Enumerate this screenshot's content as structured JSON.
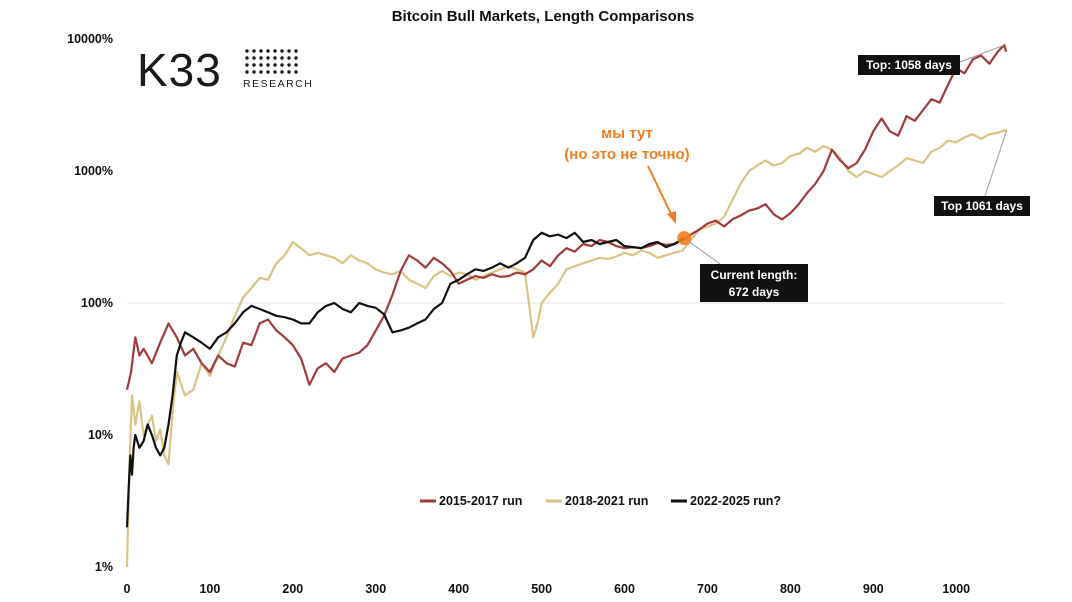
{
  "logo": {
    "word": "K33",
    "sub": "RESEARCH"
  },
  "annotations": {
    "top_2015": "Top: 1058 days",
    "top_2018": "Top 1061 days",
    "current_line1": "Current length:",
    "current_line2": "672 days",
    "note_line1": "мы тут",
    "note_line2": "(но это не точно)"
  },
  "colors": {
    "series_2015": "#a23a3c",
    "series_2018": "#dcc285",
    "series_2022": "#111111",
    "accent": "#f07d1e",
    "grid": "#e6e6e6"
  },
  "chart_data": {
    "type": "line",
    "title": "Bitcoin Bull Markets, Length Comparisons",
    "xlabel": "",
    "ylabel": "",
    "x_ticks": [
      0,
      100,
      200,
      300,
      400,
      500,
      600,
      700,
      800,
      900,
      1000
    ],
    "y_ticks": [
      1,
      10,
      100,
      1000,
      10000
    ],
    "y_tick_labels": [
      "1%",
      "10%",
      "100%",
      "1000%",
      "10000%"
    ],
    "y_scale": "log",
    "xlim": [
      0,
      1060
    ],
    "ylim": [
      1,
      10000
    ],
    "grid": "horizontal line at 100%",
    "legend_position": "bottom-center",
    "series": [
      {
        "name": "2015-2017 run",
        "points": [
          [
            0,
            22
          ],
          [
            5,
            30
          ],
          [
            10,
            55
          ],
          [
            15,
            40
          ],
          [
            20,
            45
          ],
          [
            30,
            35
          ],
          [
            40,
            50
          ],
          [
            50,
            70
          ],
          [
            60,
            55
          ],
          [
            70,
            40
          ],
          [
            80,
            45
          ],
          [
            90,
            35
          ],
          [
            100,
            30
          ],
          [
            110,
            40
          ],
          [
            120,
            35
          ],
          [
            130,
            33
          ],
          [
            140,
            50
          ],
          [
            150,
            48
          ],
          [
            160,
            70
          ],
          [
            170,
            75
          ],
          [
            180,
            62
          ],
          [
            190,
            55
          ],
          [
            200,
            48
          ],
          [
            210,
            38
          ],
          [
            220,
            24
          ],
          [
            230,
            32
          ],
          [
            240,
            35
          ],
          [
            250,
            30
          ],
          [
            260,
            38
          ],
          [
            270,
            40
          ],
          [
            280,
            42
          ],
          [
            290,
            48
          ],
          [
            300,
            62
          ],
          [
            310,
            80
          ],
          [
            320,
            115
          ],
          [
            330,
            175
          ],
          [
            340,
            230
          ],
          [
            350,
            210
          ],
          [
            360,
            185
          ],
          [
            370,
            220
          ],
          [
            380,
            200
          ],
          [
            390,
            175
          ],
          [
            400,
            140
          ],
          [
            410,
            150
          ],
          [
            420,
            160
          ],
          [
            430,
            155
          ],
          [
            440,
            165
          ],
          [
            450,
            158
          ],
          [
            460,
            160
          ],
          [
            470,
            170
          ],
          [
            480,
            165
          ],
          [
            490,
            180
          ],
          [
            500,
            210
          ],
          [
            510,
            190
          ],
          [
            520,
            230
          ],
          [
            530,
            260
          ],
          [
            540,
            245
          ],
          [
            550,
            280
          ],
          [
            560,
            270
          ],
          [
            570,
            300
          ],
          [
            580,
            290
          ],
          [
            590,
            270
          ],
          [
            600,
            260
          ],
          [
            610,
            265
          ],
          [
            620,
            260
          ],
          [
            630,
            270
          ],
          [
            640,
            285
          ],
          [
            650,
            275
          ],
          [
            660,
            280
          ],
          [
            670,
            300
          ],
          [
            680,
            330
          ],
          [
            690,
            360
          ],
          [
            700,
            400
          ],
          [
            710,
            420
          ],
          [
            720,
            380
          ],
          [
            730,
            430
          ],
          [
            740,
            460
          ],
          [
            750,
            500
          ],
          [
            760,
            520
          ],
          [
            770,
            560
          ],
          [
            780,
            470
          ],
          [
            790,
            430
          ],
          [
            800,
            480
          ],
          [
            810,
            560
          ],
          [
            820,
            680
          ],
          [
            830,
            800
          ],
          [
            840,
            1000
          ],
          [
            850,
            1450
          ],
          [
            860,
            1200
          ],
          [
            870,
            1050
          ],
          [
            880,
            1150
          ],
          [
            890,
            1450
          ],
          [
            900,
            2000
          ],
          [
            910,
            2500
          ],
          [
            920,
            2000
          ],
          [
            930,
            1850
          ],
          [
            940,
            2600
          ],
          [
            950,
            2400
          ],
          [
            960,
            2900
          ],
          [
            970,
            3500
          ],
          [
            980,
            3300
          ],
          [
            990,
            4500
          ],
          [
            1000,
            6000
          ],
          [
            1010,
            5500
          ],
          [
            1020,
            7000
          ],
          [
            1030,
            7500
          ],
          [
            1040,
            6500
          ],
          [
            1050,
            8000
          ],
          [
            1058,
            9000
          ],
          [
            1060,
            8000
          ]
        ]
      },
      {
        "name": "2018-2021 run",
        "points": [
          [
            0,
            1
          ],
          [
            3,
            6
          ],
          [
            6,
            20
          ],
          [
            10,
            12
          ],
          [
            15,
            18
          ],
          [
            20,
            10
          ],
          [
            25,
            12
          ],
          [
            30,
            14
          ],
          [
            35,
            9
          ],
          [
            40,
            11
          ],
          [
            45,
            7
          ],
          [
            50,
            6
          ],
          [
            55,
            15
          ],
          [
            60,
            30
          ],
          [
            70,
            20
          ],
          [
            80,
            22
          ],
          [
            90,
            35
          ],
          [
            100,
            28
          ],
          [
            110,
            40
          ],
          [
            120,
            55
          ],
          [
            130,
            80
          ],
          [
            140,
            110
          ],
          [
            150,
            130
          ],
          [
            160,
            155
          ],
          [
            170,
            150
          ],
          [
            180,
            200
          ],
          [
            190,
            230
          ],
          [
            200,
            290
          ],
          [
            210,
            260
          ],
          [
            220,
            230
          ],
          [
            230,
            240
          ],
          [
            240,
            230
          ],
          [
            250,
            220
          ],
          [
            260,
            200
          ],
          [
            270,
            230
          ],
          [
            280,
            210
          ],
          [
            290,
            200
          ],
          [
            300,
            180
          ],
          [
            310,
            170
          ],
          [
            320,
            165
          ],
          [
            330,
            175
          ],
          [
            340,
            150
          ],
          [
            350,
            140
          ],
          [
            360,
            130
          ],
          [
            370,
            160
          ],
          [
            380,
            175
          ],
          [
            390,
            160
          ],
          [
            400,
            170
          ],
          [
            410,
            165
          ],
          [
            420,
            150
          ],
          [
            430,
            160
          ],
          [
            440,
            170
          ],
          [
            450,
            180
          ],
          [
            460,
            190
          ],
          [
            470,
            180
          ],
          [
            480,
            170
          ],
          [
            490,
            55
          ],
          [
            495,
            70
          ],
          [
            500,
            100
          ],
          [
            510,
            120
          ],
          [
            520,
            140
          ],
          [
            530,
            180
          ],
          [
            540,
            190
          ],
          [
            550,
            200
          ],
          [
            560,
            210
          ],
          [
            570,
            220
          ],
          [
            580,
            215
          ],
          [
            590,
            225
          ],
          [
            600,
            240
          ],
          [
            610,
            230
          ],
          [
            620,
            250
          ],
          [
            630,
            240
          ],
          [
            640,
            220
          ],
          [
            650,
            230
          ],
          [
            660,
            240
          ],
          [
            670,
            250
          ],
          [
            680,
            300
          ],
          [
            690,
            360
          ],
          [
            700,
            380
          ],
          [
            710,
            400
          ],
          [
            720,
            450
          ],
          [
            730,
            600
          ],
          [
            740,
            800
          ],
          [
            750,
            1000
          ],
          [
            760,
            1100
          ],
          [
            770,
            1200
          ],
          [
            780,
            1100
          ],
          [
            790,
            1150
          ],
          [
            800,
            1300
          ],
          [
            810,
            1350
          ],
          [
            820,
            1500
          ],
          [
            830,
            1400
          ],
          [
            840,
            1550
          ],
          [
            850,
            1450
          ],
          [
            860,
            1250
          ],
          [
            870,
            1000
          ],
          [
            880,
            900
          ],
          [
            890,
            1000
          ],
          [
            900,
            950
          ],
          [
            910,
            900
          ],
          [
            920,
            1000
          ],
          [
            930,
            1100
          ],
          [
            940,
            1250
          ],
          [
            950,
            1200
          ],
          [
            960,
            1150
          ],
          [
            970,
            1400
          ],
          [
            980,
            1500
          ],
          [
            990,
            1700
          ],
          [
            1000,
            1650
          ],
          [
            1010,
            1800
          ],
          [
            1020,
            1900
          ],
          [
            1030,
            1750
          ],
          [
            1040,
            1900
          ],
          [
            1050,
            1950
          ],
          [
            1061,
            2050
          ]
        ]
      },
      {
        "name": "2022-2025 run?",
        "points": [
          [
            0,
            2
          ],
          [
            2,
            4
          ],
          [
            4,
            7
          ],
          [
            6,
            5
          ],
          [
            8,
            8
          ],
          [
            10,
            10
          ],
          [
            15,
            8
          ],
          [
            20,
            9
          ],
          [
            25,
            12
          ],
          [
            30,
            10
          ],
          [
            35,
            8
          ],
          [
            40,
            7
          ],
          [
            45,
            8
          ],
          [
            50,
            12
          ],
          [
            55,
            20
          ],
          [
            60,
            40
          ],
          [
            65,
            50
          ],
          [
            70,
            60
          ],
          [
            80,
            55
          ],
          [
            90,
            50
          ],
          [
            100,
            45
          ],
          [
            110,
            55
          ],
          [
            120,
            60
          ],
          [
            130,
            70
          ],
          [
            140,
            85
          ],
          [
            150,
            95
          ],
          [
            160,
            90
          ],
          [
            170,
            85
          ],
          [
            180,
            80
          ],
          [
            190,
            78
          ],
          [
            200,
            75
          ],
          [
            210,
            70
          ],
          [
            220,
            70
          ],
          [
            230,
            85
          ],
          [
            240,
            95
          ],
          [
            250,
            100
          ],
          [
            260,
            90
          ],
          [
            270,
            85
          ],
          [
            280,
            100
          ],
          [
            290,
            95
          ],
          [
            300,
            92
          ],
          [
            310,
            82
          ],
          [
            320,
            60
          ],
          [
            330,
            62
          ],
          [
            340,
            65
          ],
          [
            350,
            70
          ],
          [
            360,
            75
          ],
          [
            370,
            90
          ],
          [
            380,
            100
          ],
          [
            390,
            140
          ],
          [
            400,
            150
          ],
          [
            410,
            165
          ],
          [
            420,
            180
          ],
          [
            430,
            175
          ],
          [
            440,
            185
          ],
          [
            450,
            200
          ],
          [
            460,
            185
          ],
          [
            470,
            200
          ],
          [
            480,
            220
          ],
          [
            490,
            300
          ],
          [
            500,
            340
          ],
          [
            510,
            320
          ],
          [
            520,
            330
          ],
          [
            530,
            310
          ],
          [
            540,
            340
          ],
          [
            550,
            290
          ],
          [
            560,
            300
          ],
          [
            570,
            280
          ],
          [
            580,
            290
          ],
          [
            590,
            300
          ],
          [
            600,
            270
          ],
          [
            610,
            265
          ],
          [
            620,
            260
          ],
          [
            630,
            280
          ],
          [
            640,
            290
          ],
          [
            650,
            265
          ],
          [
            660,
            280
          ],
          [
            672,
            310
          ]
        ]
      }
    ]
  }
}
